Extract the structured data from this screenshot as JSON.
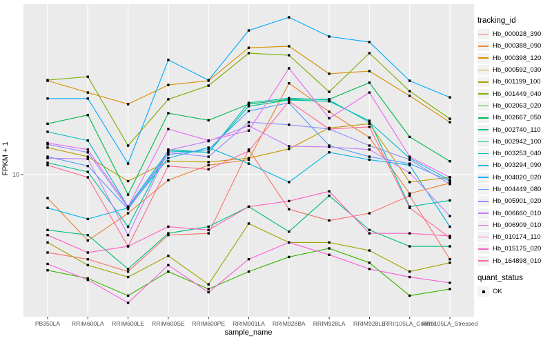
{
  "figure": {
    "legend": {
      "tracking_title": "tracking_id",
      "quant_title": "quant_status",
      "quant_label": "OK"
    },
    "colors": {
      "panel_bg": "#EBEBEB",
      "grid": "#FFFFFF",
      "tick_text": "#4D4D4D",
      "axis_tick": "#333333",
      "point": "#000000",
      "legend_key_bg": "#F2F2F2"
    }
  },
  "chart_data": {
    "type": "line",
    "title": "",
    "xlabel": "sample_name",
    "ylabel": "FPKM + 1",
    "y_scale": "log10",
    "ylim": [
      2.2,
      62
    ],
    "y_tick_labels": [
      "10"
    ],
    "grid": true,
    "legend_position": "right",
    "point_shape": "filled-square-black",
    "quant_status": "OK",
    "categories": [
      "PB350LA",
      "RRIM600LA",
      "RRIM600LE",
      "RRIM600SE",
      "RRIM600PE",
      "RRIM901LA",
      "RRIM928BA",
      "RRIM928LA",
      "RRIM928LE",
      "RRII105LA_Control",
      "RRII105LA_Stressed"
    ],
    "series": [
      {
        "name": "Hb_000028_390",
        "color": "#F8766D",
        "values": [
          4.2,
          3.9,
          3.4,
          5.1,
          5.2,
          13.2,
          6.8,
          6.0,
          6.5,
          7.9,
          3.9
        ]
      },
      {
        "name": "Hb_000388_090",
        "color": "#EA8331",
        "values": [
          7.7,
          4.8,
          6.5,
          9.4,
          11.1,
          11.8,
          27.6,
          20.1,
          15.1,
          8.1,
          9.1
        ]
      },
      {
        "name": "Hb_000398_120",
        "color": "#D89000",
        "values": [
          28.4,
          24.9,
          21.9,
          27.1,
          28.4,
          41.0,
          41.7,
          30.7,
          31.6,
          24.0,
          17.9
        ]
      },
      {
        "name": "Hb_000592_030",
        "color": "#C09B00",
        "values": [
          13.5,
          12.2,
          9.3,
          11.6,
          11.5,
          12.0,
          13.3,
          16.8,
          17.6,
          9.2,
          9.7
        ]
      },
      {
        "name": "Hb_001199_100",
        "color": "#A3A500",
        "values": [
          4.7,
          3.65,
          3.2,
          4.05,
          2.95,
          5.8,
          4.7,
          4.7,
          4.3,
          3.4,
          3.75
        ]
      },
      {
        "name": "Hb_001449_040",
        "color": "#7CAE00",
        "values": [
          28.6,
          29.7,
          13.8,
          23.1,
          26.9,
          38.6,
          37.7,
          25.1,
          38.6,
          25.3,
          18.6
        ]
      },
      {
        "name": "Hb_002063_020",
        "color": "#39B600",
        "values": [
          3.45,
          3.15,
          2.6,
          3.4,
          2.8,
          3.4,
          4.0,
          4.4,
          3.75,
          2.6,
          2.8
        ]
      },
      {
        "name": "Hb_002667_050",
        "color": "#00BB4E",
        "values": [
          17.6,
          19.4,
          8.0,
          19.8,
          18.3,
          21.9,
          23.1,
          23.1,
          27.8,
          15.2,
          11.6
        ]
      },
      {
        "name": "Hb_002740_110",
        "color": "#00C079",
        "values": [
          5.4,
          5.1,
          3.5,
          5.2,
          5.6,
          7.0,
          5.3,
          7.9,
          5.4,
          4.5,
          4.5
        ]
      },
      {
        "name": "Hb_002942_100",
        "color": "#00C19F",
        "values": [
          11.4,
          10.3,
          5.6,
          13.2,
          12.8,
          21.4,
          22.9,
          22.6,
          18.2,
          7.0,
          7.5
        ]
      },
      {
        "name": "Hb_003253_040",
        "color": "#00BFC4",
        "values": [
          16.1,
          14.6,
          7.0,
          13.0,
          12.8,
          22.2,
          23.4,
          22.9,
          17.9,
          12.0,
          9.4
        ]
      },
      {
        "name": "Hb_003294_090",
        "color": "#00B8E5",
        "values": [
          6.9,
          6.1,
          6.9,
          12.0,
          13.5,
          11.3,
          9.2,
          12.8,
          11.8,
          11.1,
          5.6
        ]
      },
      {
        "name": "Hb_004020_020",
        "color": "#00ACFC",
        "values": [
          23.3,
          23.3,
          11.3,
          35.8,
          28.6,
          49.7,
          57.5,
          46.4,
          43.7,
          28.4,
          23.6
        ]
      },
      {
        "name": "Hb_004449_080",
        "color": "#529EFF",
        "values": [
          12.2,
          11.0,
          6.8,
          12.5,
          13.2,
          20.3,
          22.2,
          13.8,
          12.2,
          11.3,
          9.3
        ]
      },
      {
        "name": "Hb_005901_020",
        "color": "#9590FF",
        "values": [
          14.0,
          12.8,
          6.9,
          12.8,
          12.2,
          17.9,
          17.4,
          16.6,
          13.8,
          11.8,
          9.0
        ]
      },
      {
        "name": "Hb_006660_010",
        "color": "#C77CFF",
        "values": [
          12.0,
          11.9,
          5.1,
          13.1,
          14.5,
          17.2,
          13.7,
          13.6,
          13.2,
          10.2,
          6.3
        ]
      },
      {
        "name": "Hb_006909_010",
        "color": "#E76BF3",
        "values": [
          14.2,
          13.2,
          7.0,
          16.6,
          14.6,
          16.3,
          32.6,
          18.7,
          24.9,
          12.2,
          9.7
        ]
      },
      {
        "name": "Hb_010174_110",
        "color": "#FA62DB",
        "values": [
          3.7,
          3.1,
          2.4,
          3.65,
          2.7,
          3.9,
          4.7,
          4.1,
          3.5,
          3.2,
          3.0
        ]
      },
      {
        "name": "Hb_015175_020",
        "color": "#FF61C3",
        "values": [
          5.1,
          4.2,
          4.5,
          5.6,
          5.4,
          7.0,
          7.45,
          8.3,
          5.2,
          5.2,
          5.05
        ]
      },
      {
        "name": "Hb_164898_010",
        "color": "#FF6A98",
        "values": [
          11.1,
          9.7,
          4.5,
          11.0,
          10.6,
          13.0,
          22.6,
          16.6,
          17.0,
          6.9,
          4.95
        ]
      }
    ]
  }
}
